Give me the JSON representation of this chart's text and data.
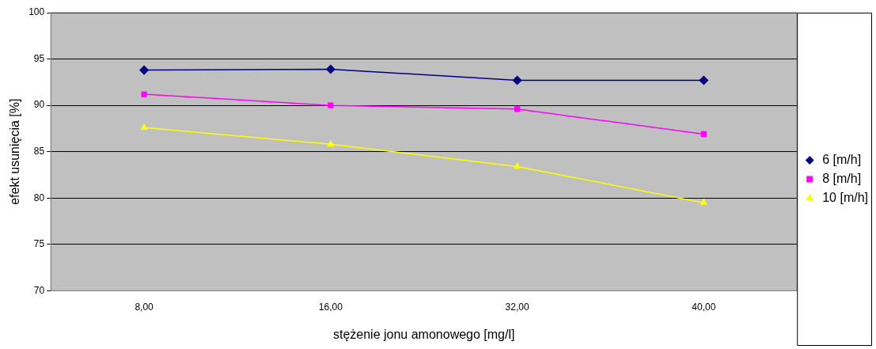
{
  "chart_data": {
    "type": "line",
    "xlabel": "stężenie jonu amonowego [mg/l]",
    "ylabel": "efekt usunięcia [%]",
    "categories": [
      "8,00",
      "16,00",
      "32,00",
      "40,00"
    ],
    "series": [
      {
        "name": "6 [m/h]",
        "color": "#000080",
        "marker": "diamond",
        "values": [
          93.8,
          93.9,
          92.7,
          92.7
        ]
      },
      {
        "name": "8 [m/h]",
        "color": "#ff00ff",
        "marker": "square",
        "values": [
          91.2,
          90.0,
          89.6,
          86.9
        ]
      },
      {
        "name": "10 [m/h]",
        "color": "#ffff00",
        "marker": "triangle",
        "values": [
          87.6,
          85.8,
          83.4,
          79.5
        ]
      }
    ],
    "ylim": [
      70,
      100
    ],
    "yticks": [
      70,
      75,
      80,
      85,
      90,
      95,
      100
    ],
    "grid": "y",
    "legend": "right",
    "line_style": "solid"
  }
}
